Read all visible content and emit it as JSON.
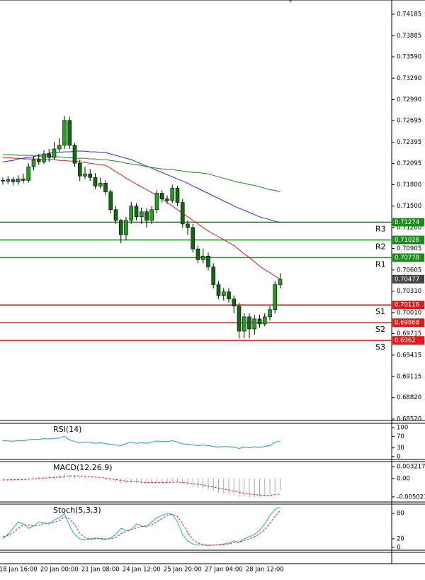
{
  "chart_data": [
    {
      "type": "candlestick",
      "categories": [
        null,
        null,
        null,
        "18 Jan 16:00",
        null,
        null,
        null,
        null,
        null,
        null,
        null,
        "20 Jan 00:00",
        null,
        null,
        null,
        null,
        null,
        null,
        null,
        "21 Jan 08:00",
        null,
        null,
        null,
        null,
        null,
        null,
        null,
        "24 Jan 12:00",
        null,
        null,
        null,
        null,
        null,
        null,
        null,
        "25 Jan 20:00",
        null,
        null,
        null,
        null,
        null,
        null,
        null,
        "27 Jan 04:00",
        null,
        null,
        null,
        null,
        null,
        null,
        null,
        "28 Jan 12:00",
        null,
        null,
        null
      ],
      "open": [
        0.7186,
        0.7185,
        0.7187,
        0.7184,
        0.7188,
        0.7186,
        0.7205,
        0.7215,
        0.7212,
        0.7223,
        0.7218,
        0.723,
        0.7235,
        0.727,
        0.7235,
        0.721,
        0.7192,
        0.7195,
        0.719,
        0.7178,
        0.7182,
        0.717,
        0.7145,
        0.713,
        0.711,
        0.713,
        0.715,
        0.7135,
        0.7142,
        0.713,
        0.7145,
        0.7168,
        0.716,
        0.7158,
        0.7175,
        0.7155,
        0.7125,
        0.712,
        0.709,
        0.7075,
        0.708,
        0.7065,
        0.704,
        0.7025,
        0.703,
        0.702,
        0.701,
        0.6975,
        0.6995,
        0.6978,
        0.6992,
        0.6985,
        0.6995,
        0.7005,
        0.704
      ],
      "high": [
        0.719,
        0.7192,
        0.7191,
        0.7193,
        0.7195,
        0.721,
        0.722,
        0.7223,
        0.7228,
        0.723,
        0.724,
        0.7245,
        0.7276,
        0.7275,
        0.7238,
        0.7215,
        0.7205,
        0.7202,
        0.7196,
        0.719,
        0.7186,
        0.7173,
        0.715,
        0.7132,
        0.7135,
        0.7156,
        0.7154,
        0.7148,
        0.7147,
        0.715,
        0.7172,
        0.7172,
        0.7165,
        0.718,
        0.7178,
        0.716,
        0.713,
        0.7125,
        0.7095,
        0.709,
        0.7085,
        0.707,
        0.7045,
        0.7035,
        0.7035,
        0.7025,
        0.7015,
        0.7,
        0.7,
        0.6998,
        0.6998,
        0.7,
        0.701,
        0.7045,
        0.7056
      ],
      "low": [
        0.718,
        0.7181,
        0.7179,
        0.718,
        0.7182,
        0.7183,
        0.72,
        0.7208,
        0.7209,
        0.7212,
        0.7215,
        0.7226,
        0.723,
        0.723,
        0.7205,
        0.7185,
        0.7188,
        0.7185,
        0.7174,
        0.7175,
        0.7165,
        0.714,
        0.7125,
        0.7098,
        0.7102,
        0.7125,
        0.713,
        0.7125,
        0.712,
        0.7125,
        0.714,
        0.7155,
        0.7153,
        0.7154,
        0.715,
        0.712,
        0.711,
        0.7085,
        0.707,
        0.707,
        0.706,
        0.7035,
        0.702,
        0.7018,
        0.7015,
        0.7,
        0.6965,
        0.6965,
        0.6965,
        0.697,
        0.698,
        0.6982,
        0.699,
        0.7,
        0.7035
      ],
      "close": [
        0.7185,
        0.7187,
        0.7184,
        0.7188,
        0.7186,
        0.7205,
        0.7215,
        0.7212,
        0.7223,
        0.7218,
        0.723,
        0.7235,
        0.727,
        0.7235,
        0.721,
        0.7192,
        0.7195,
        0.719,
        0.7178,
        0.7182,
        0.717,
        0.7145,
        0.713,
        0.711,
        0.713,
        0.715,
        0.7135,
        0.7142,
        0.713,
        0.7145,
        0.7168,
        0.716,
        0.7158,
        0.7175,
        0.7155,
        0.7125,
        0.712,
        0.709,
        0.7075,
        0.708,
        0.7065,
        0.704,
        0.7025,
        0.703,
        0.702,
        0.701,
        0.6975,
        0.6995,
        0.6978,
        0.6992,
        0.6985,
        0.6995,
        0.7005,
        0.704,
        0.70477
      ],
      "up_color": "#22a022",
      "down_color": "#0f6a0f",
      "overlays": [
        {
          "color": "#e41a1a",
          "values": [
            0.7218,
            0.7218,
            0.7217,
            0.7217,
            0.7216,
            0.7216,
            0.7216,
            0.7216,
            0.7215,
            0.7215,
            0.7215,
            0.7214,
            0.7214,
            0.7213,
            0.7213,
            0.7212,
            0.7211,
            0.721,
            0.7209,
            0.7208,
            0.7207,
            0.7203,
            0.7198,
            0.7194,
            0.7189,
            0.7185,
            0.7181,
            0.7177,
            0.7173,
            0.7169,
            0.7165,
            0.716,
            0.7155,
            0.715,
            0.7145,
            0.714,
            0.7135,
            0.713,
            0.7125,
            0.712,
            0.7115,
            0.7111,
            0.7107,
            0.7103,
            0.7099,
            0.7095,
            0.7089,
            0.7083,
            0.7078,
            0.7072,
            0.7066,
            0.7061,
            0.7057,
            0.7052,
            0.7048
          ]
        },
        {
          "color": "#1b2fd6",
          "values": [
            0.7212,
            0.7213,
            0.7214,
            0.7216,
            0.7217,
            0.7218,
            0.7219,
            0.7221,
            0.7222,
            0.7224,
            0.7225,
            0.7225,
            0.7226,
            0.7226,
            0.7227,
            0.7227,
            0.7227,
            0.7226,
            0.7226,
            0.7225,
            0.7225,
            0.7223,
            0.7221,
            0.7219,
            0.7217,
            0.7215,
            0.7212,
            0.7209,
            0.7206,
            0.7203,
            0.72,
            0.7197,
            0.7194,
            0.7191,
            0.7188,
            0.7185,
            0.7182,
            0.7178,
            0.7175,
            0.7171,
            0.7168,
            0.7164,
            0.7161,
            0.7157,
            0.7154,
            0.715,
            0.7147,
            0.7144,
            0.7141,
            0.7138,
            0.7135,
            0.7133,
            0.7131,
            0.7129,
            0.7127
          ]
        },
        {
          "color": "#1e8a1e",
          "values": [
            0.7222,
            0.7222,
            0.7222,
            0.7221,
            0.7221,
            0.7221,
            0.7221,
            0.722,
            0.722,
            0.722,
            0.7219,
            0.7219,
            0.7218,
            0.7218,
            0.7217,
            0.7217,
            0.7217,
            0.7216,
            0.7216,
            0.7215,
            0.7215,
            0.7214,
            0.7213,
            0.7212,
            0.721,
            0.7209,
            0.7208,
            0.7207,
            0.7205,
            0.7204,
            0.7203,
            0.7202,
            0.7201,
            0.7201,
            0.72,
            0.7199,
            0.7198,
            0.7197,
            0.7197,
            0.7196,
            0.7195,
            0.7193,
            0.7191,
            0.7189,
            0.7187,
            0.7185,
            0.7183,
            0.7182,
            0.718,
            0.7179,
            0.7177,
            0.7175,
            0.7173,
            0.7172,
            0.717
          ]
        }
      ],
      "levels": [
        {
          "label": "R3",
          "value": 0.71274,
          "color": "#1e8a1e"
        },
        {
          "label": "R2",
          "value": 0.71026,
          "color": "#1e8a1e"
        },
        {
          "label": "R1",
          "value": 0.70778,
          "color": "#1e8a1e"
        },
        {
          "label": "S1",
          "value": 0.70116,
          "color": "#e41a1a"
        },
        {
          "label": "S2",
          "value": 0.69868,
          "color": "#e41a1a"
        },
        {
          "label": "S3",
          "value": 0.6962,
          "color": "#e41a1a"
        }
      ],
      "last_price": 0.70477,
      "last_price_color": "#444444",
      "ylim": [
        0.685,
        0.74384
      ],
      "yticks": [
        {
          "value": 0.74185,
          "label": "0.74185"
        },
        {
          "value": 0.73885,
          "label": "0.73885"
        },
        {
          "value": 0.7359,
          "label": "0.73590"
        },
        {
          "value": 0.7329,
          "label": "0.73290"
        },
        {
          "value": 0.7299,
          "label": "0.72990"
        },
        {
          "value": 0.72695,
          "label": "0.72695"
        },
        {
          "value": 0.72395,
          "label": "0.72395"
        },
        {
          "value": 0.72095,
          "label": "0.72095"
        },
        {
          "value": 0.718,
          "label": "0.71800"
        },
        {
          "value": 0.715,
          "label": "0.71500"
        },
        {
          "value": 0.712,
          "label": "0.71200"
        },
        {
          "value": 0.70905,
          "label": "0.70905"
        },
        {
          "value": 0.70605,
          "label": "0.70605"
        },
        {
          "value": 0.7031,
          "label": "0.70310"
        },
        {
          "value": 0.7001,
          "label": "0.70010"
        },
        {
          "value": 0.69715,
          "label": "0.69715"
        },
        {
          "value": 0.69415,
          "label": "0.69415"
        },
        {
          "value": 0.69115,
          "label": "0.69115"
        },
        {
          "value": 0.6882,
          "label": "0.68820"
        },
        {
          "value": 0.6852,
          "label": "0.68520"
        }
      ]
    },
    {
      "type": "line",
      "title": "RSI(14)",
      "ylim": [
        -10,
        115
      ],
      "yticks": [
        100,
        70,
        30,
        0
      ],
      "series": [
        {
          "color": "#1e90ff",
          "dash": false,
          "values": [
            55,
            54,
            53,
            55,
            54,
            58,
            60,
            59,
            62,
            61,
            63,
            64,
            70,
            58,
            52,
            48,
            50,
            49,
            46,
            48,
            45,
            42,
            40,
            38,
            45,
            50,
            46,
            48,
            46,
            50,
            54,
            52,
            52,
            55,
            50,
            44,
            43,
            40,
            38,
            40,
            38,
            35,
            33,
            35,
            34,
            33,
            28,
            33,
            30,
            34,
            32,
            35,
            38,
            50,
            53
          ]
        }
      ]
    },
    {
      "type": "macd",
      "title": "MACD(12.26.9)",
      "ylim": [
        -0.0064,
        0.0046
      ],
      "yticks": [
        0.003217,
        {
          "value": 0,
          "label": "0.00"
        },
        -0.005021
      ],
      "histogram": {
        "color": "#a9a9a9",
        "values": [
          -0.0003,
          -0.0003,
          -0.0002,
          -0.0002,
          -0.0001,
          0.0001,
          0.0003,
          0.0004,
          0.0006,
          0.0007,
          0.0009,
          0.001,
          0.0014,
          0.0011,
          0.0008,
          0.0005,
          0.0003,
          0.0001,
          -0.0001,
          -0.0002,
          -0.0004,
          -0.0007,
          -0.001,
          -0.0013,
          -0.0013,
          -0.0012,
          -0.0013,
          -0.0013,
          -0.0014,
          -0.0013,
          -0.001,
          -0.001,
          -0.001,
          -0.0008,
          -0.001,
          -0.0014,
          -0.0017,
          -0.0021,
          -0.0025,
          -0.0027,
          -0.003,
          -0.0034,
          -0.0038,
          -0.004,
          -0.0042,
          -0.0044,
          -0.005,
          -0.005,
          -0.0052,
          -0.0051,
          -0.005,
          -0.0048,
          -0.0045,
          -0.0038,
          -0.0032
        ]
      },
      "series": [
        {
          "color": "#e41a1a",
          "dash": true,
          "values": [
            -0.0004,
            -0.0004,
            -0.0003,
            -0.0003,
            -0.0003,
            -0.0002,
            -0.0001,
            0,
            0.0001,
            0.0002,
            0.0003,
            0.0004,
            0.0006,
            0.0007,
            0.0007,
            0.0007,
            0.0006,
            0.0005,
            0.0004,
            0.0003,
            0.0001,
            -0.0001,
            -0.0003,
            -0.0005,
            -0.0007,
            -0.0008,
            -0.0009,
            -0.001,
            -0.0011,
            -0.0011,
            -0.0011,
            -0.0011,
            -0.0011,
            -0.001,
            -0.001,
            -0.0011,
            -0.0012,
            -0.0014,
            -0.0016,
            -0.0018,
            -0.0021,
            -0.0023,
            -0.0026,
            -0.0029,
            -0.0031,
            -0.0034,
            -0.0037,
            -0.004,
            -0.0042,
            -0.0044,
            -0.0045,
            -0.0046,
            -0.0046,
            -0.0044,
            -0.0042
          ]
        }
      ]
    },
    {
      "type": "line",
      "title": "Stoch(5,3,3)",
      "ylim": [
        -7,
        102
      ],
      "yticks": [
        80,
        20,
        0
      ],
      "series": [
        {
          "color": "#20b2c8",
          "dash": false,
          "values": [
            20,
            30,
            45,
            60,
            55,
            45,
            50,
            60,
            58,
            55,
            65,
            70,
            80,
            50,
            30,
            20,
            18,
            20,
            22,
            20,
            18,
            22,
            30,
            45,
            40,
            42,
            55,
            50,
            48,
            60,
            70,
            75,
            80,
            78,
            60,
            30,
            15,
            8,
            5,
            5,
            4,
            5,
            6,
            8,
            10,
            15,
            12,
            20,
            25,
            30,
            40,
            55,
            75,
            90,
            95
          ]
        },
        {
          "color": "#e41a1a",
          "dash": true,
          "values": [
            25,
            28,
            35,
            45,
            53,
            53,
            50,
            52,
            56,
            57,
            59,
            63,
            72,
            67,
            53,
            33,
            23,
            19,
            20,
            21,
            20,
            20,
            23,
            32,
            38,
            42,
            46,
            49,
            51,
            53,
            60,
            68,
            75,
            78,
            73,
            56,
            35,
            18,
            10,
            6,
            5,
            5,
            5,
            6,
            8,
            11,
            12,
            16,
            19,
            25,
            32,
            42,
            57,
            73,
            87
          ]
        }
      ]
    }
  ]
}
